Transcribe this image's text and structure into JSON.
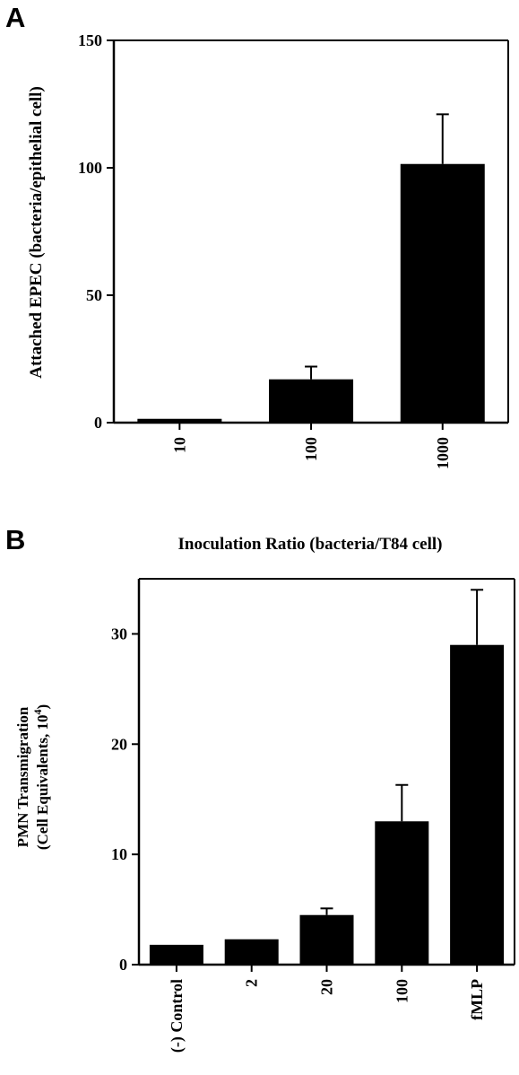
{
  "panels": [
    {
      "letter": "A"
    },
    {
      "letter": "B"
    }
  ],
  "chart_data": [
    {
      "type": "bar",
      "title": "",
      "xlabel": "Inoculation Ratio (bacteria/T84 cell)",
      "ylabel": "Attached EPEC (bacteria/epithelial cell)",
      "ylim": [
        0,
        150
      ],
      "yticks": [
        0,
        50,
        100,
        150
      ],
      "categories": [
        "10",
        "100",
        "1000"
      ],
      "values": [
        1.5,
        17,
        101.5
      ],
      "errors": [
        0,
        5,
        19.5
      ],
      "grid": false,
      "legend": "none",
      "bar_color": "#000000"
    },
    {
      "type": "bar",
      "title": "",
      "xlabel": "",
      "ylabel": "PMN Transmigration",
      "ylabel_line2": "(Cell Equivalents, 10",
      "ylabel_sup": "4",
      "ylabel_close": ")",
      "ylim": [
        0,
        35
      ],
      "yticks": [
        0,
        10,
        20,
        30
      ],
      "categories": [
        "(-) Control",
        "2",
        "20",
        "100",
        "fMLP"
      ],
      "values": [
        1.8,
        2.3,
        4.5,
        13,
        29
      ],
      "errors": [
        0,
        0,
        0.6,
        3.3,
        5
      ],
      "grid": false,
      "legend": "none",
      "bar_color": "#000000"
    }
  ]
}
